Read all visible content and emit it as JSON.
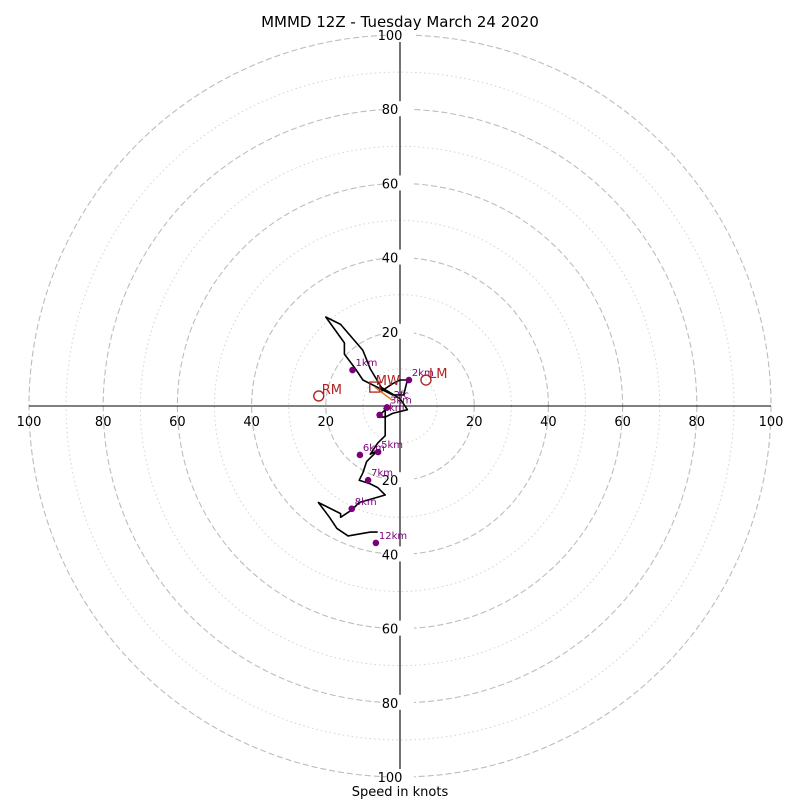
{
  "chart_data": {
    "type": "line",
    "subtype": "hodograph",
    "title": "MMMD 12Z - Tuesday March 24 2020",
    "xlabel": "Speed in knots",
    "ylabel": "",
    "xlim": [
      -100,
      100
    ],
    "ylim": [
      -100,
      100
    ],
    "ring_labels": [
      20,
      40,
      60,
      80,
      100
    ],
    "minor_rings": [
      10,
      30,
      50,
      70,
      90
    ],
    "x_ticks": [
      {
        "value": -100,
        "label": "100"
      },
      {
        "value": -80,
        "label": "80"
      },
      {
        "value": -60,
        "label": "60"
      },
      {
        "value": -40,
        "label": "40"
      },
      {
        "value": -20,
        "label": "20"
      },
      {
        "value": 20,
        "label": "20"
      },
      {
        "value": 40,
        "label": "40"
      },
      {
        "value": 60,
        "label": "60"
      },
      {
        "value": 80,
        "label": "80"
      },
      {
        "value": 100,
        "label": "100"
      }
    ],
    "y_ticks": [
      {
        "value": 100,
        "label": "100"
      },
      {
        "value": 80,
        "label": "80"
      },
      {
        "value": 60,
        "label": "60"
      },
      {
        "value": 40,
        "label": "40"
      },
      {
        "value": 20,
        "label": "20"
      },
      {
        "value": -20,
        "label": "20"
      },
      {
        "value": -40,
        "label": "40"
      },
      {
        "value": -60,
        "label": "60"
      },
      {
        "value": -80,
        "label": "80"
      },
      {
        "value": -100,
        "label": "100"
      }
    ],
    "series": [
      {
        "x": [
          -5,
          -2,
          0,
          2,
          1,
          -2,
          -10,
          -12,
          -15,
          -15,
          -20,
          -16,
          -10,
          -8,
          -5,
          0,
          2,
          -2,
          -4,
          -6,
          -4,
          -4,
          -6,
          -8,
          -6,
          -9,
          -10,
          -11,
          -8,
          -6,
          -4,
          -11,
          -13,
          -16,
          -16,
          -22,
          -19,
          -17,
          -14,
          -8,
          -6
        ],
        "y": [
          4,
          6,
          7,
          7,
          3,
          3,
          7,
          10,
          14,
          17,
          24,
          22,
          15,
          10,
          5,
          2,
          -1,
          -2,
          -3,
          -3,
          -1,
          -8,
          -10,
          -13,
          -12,
          -15,
          -18,
          -20,
          -21,
          -22,
          -24,
          -26,
          -28,
          -30,
          -29,
          -26,
          -30,
          -33,
          -35,
          -34,
          -34
        ]
      }
    ],
    "height_markers": [
      {
        "label": "1km",
        "x": -12.8,
        "y": 9.7
      },
      {
        "label": "2km",
        "x": 2.4,
        "y": 7.0
      },
      {
        "label": "3km",
        "x": -3.5,
        "y": -0.4
      },
      {
        "label": "4km",
        "x": -5.5,
        "y": -2.4
      },
      {
        "label": "5km",
        "x": -5.9,
        "y": -12.4
      },
      {
        "label": "6km",
        "x": -10.8,
        "y": -13.2
      },
      {
        "label": "7km",
        "x": -8.6,
        "y": -20.0
      },
      {
        "label": "8km",
        "x": -13.0,
        "y": -27.7
      },
      {
        "label": "12km",
        "x": -6.5,
        "y": -36.9
      }
    ],
    "storm_motions": [
      {
        "label": "RM",
        "x": -21.9,
        "y": 2.7
      },
      {
        "label": "LM",
        "x": 7.0,
        "y": 7.0
      }
    ],
    "mean_wind": {
      "label": "MW",
      "x": -6.8,
      "y": 5.1
    },
    "shear_marker": {
      "label": "2fc",
      "x": -2.0,
      "y": 2.7
    },
    "bunkers_shear": {
      "x0": -6.8,
      "y0": 5.1,
      "x1": -2.0,
      "y1": 1.5
    },
    "colors": {
      "hodograph": "#000000",
      "height_markers": "#7a007a",
      "storm_motion": "#b22222",
      "shear": "#e8731a",
      "rings": "#bdbdbd"
    }
  }
}
